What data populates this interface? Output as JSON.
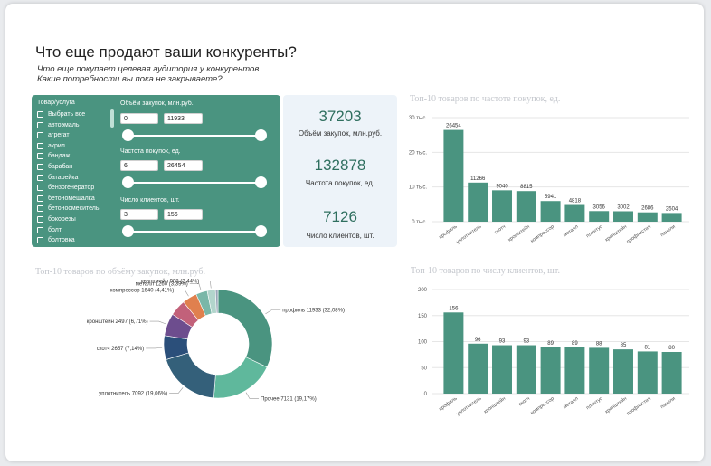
{
  "header": {
    "title": "Что еще продают ваши конкуренты?",
    "subtitle1": "Что еще покупает целевая аудитория  у конкурентов.",
    "subtitle2": "Какие потребности вы пока не закрываете?"
  },
  "filters": {
    "list_header": "Товар/услуга",
    "items": [
      "Выбрать все",
      "автоэмаль",
      "агрегат",
      "акрил",
      "бандаж",
      "барабан",
      "батарейка",
      "бензогенератор",
      "бетономешалка",
      "бетоносмеситель",
      "бокорезы",
      "болт",
      "болтовка"
    ],
    "volume": {
      "label": "Объём закупок, млн.руб.",
      "min": "0",
      "max": "11933"
    },
    "frequency": {
      "label": "Частота покупок, ед.",
      "min": "6",
      "max": "26454"
    },
    "clients": {
      "label": "Число клиентов, шт.",
      "min": "3",
      "max": "156"
    }
  },
  "kpi": {
    "volume": {
      "value": "37203",
      "label": "Объём закупок, млн.руб."
    },
    "frequency": {
      "value": "132878",
      "label": "Частота покупок, ед."
    },
    "clients": {
      "value": "7126",
      "label": "Число клиентов, шт."
    }
  },
  "colors": {
    "accent": "#4a9480",
    "panel_bg": "#edf3f9"
  },
  "chart_data": [
    {
      "id": "freq",
      "type": "bar",
      "title": "Топ-10 товаров по частоте покупок, ед.",
      "categories": [
        "профиль",
        "уплотнитель",
        "скотч",
        "кронштейн",
        "компрессор",
        "металл",
        "плинтус",
        "кронштейн",
        "профнастил",
        "панели"
      ],
      "values": [
        26454,
        11266,
        9040,
        8815,
        5941,
        4818,
        3056,
        3002,
        2686,
        2504
      ],
      "value_labels": [
        "26454",
        "11266",
        "9040",
        "8815",
        "5941",
        "4818",
        "3056",
        "3002",
        "2686",
        "2504"
      ],
      "ytick_values": [
        0,
        10000,
        20000,
        30000
      ],
      "ytick_labels": [
        "0 тыс.",
        "10 тыс.",
        "20 тыс.",
        "30 тыс."
      ],
      "ylim": [
        0,
        30000
      ],
      "color": "#4a9480"
    },
    {
      "id": "clients",
      "type": "bar",
      "title": "Топ-10 товаров по числу клиентов, шт.",
      "categories": [
        "профиль",
        "уплотнитель",
        "кронштейн",
        "скотч",
        "компрессор",
        "металл",
        "плинтус",
        "кронштейн",
        "профнастил",
        "панели"
      ],
      "values": [
        156,
        96,
        93,
        93,
        89,
        89,
        88,
        85,
        81,
        80
      ],
      "value_labels": [
        "156",
        "96",
        "93",
        "93",
        "89",
        "89",
        "88",
        "85",
        "81",
        "80"
      ],
      "ytick_values": [
        0,
        50,
        100,
        150,
        200
      ],
      "ytick_labels": [
        "0",
        "50",
        "100",
        "150",
        "200"
      ],
      "ylim": [
        0,
        200
      ],
      "color": "#4a9480"
    },
    {
      "id": "pie",
      "type": "pie",
      "title": "Топ-10 товаров по объёму закупок, млн.руб.",
      "slices": [
        {
          "label": "профиль 11933 (32,08%)",
          "value": 11933,
          "color": "#4a9480"
        },
        {
          "label": "Прочее 7131 (19,17%)",
          "value": 7131,
          "color": "#5fb89c"
        },
        {
          "label": "уплотнитель 7092 (19,06%)",
          "value": 7092,
          "color": "#34607a"
        },
        {
          "label": "скотч 2657 (7,14%)",
          "value": 2657,
          "color": "#2b4f7a"
        },
        {
          "label": "кронштейн 2497 (6,71%)",
          "value": 2497,
          "color": "#6d4d8e"
        },
        {
          "label": "",
          "value": 1800,
          "color": "#c2617a"
        },
        {
          "label": "компрессор 1640 (4,41%)",
          "value": 1640,
          "color": "#e0804e"
        },
        {
          "label": "металл 1260 (3,39%)",
          "value": 1260,
          "color": "#7ab7a8"
        },
        {
          "label": "кронштейн 908 (2,44%)",
          "value": 908,
          "color": "#b2d5cc"
        },
        {
          "label": "",
          "value": 285,
          "color": "#9aa7b8"
        }
      ]
    }
  ]
}
